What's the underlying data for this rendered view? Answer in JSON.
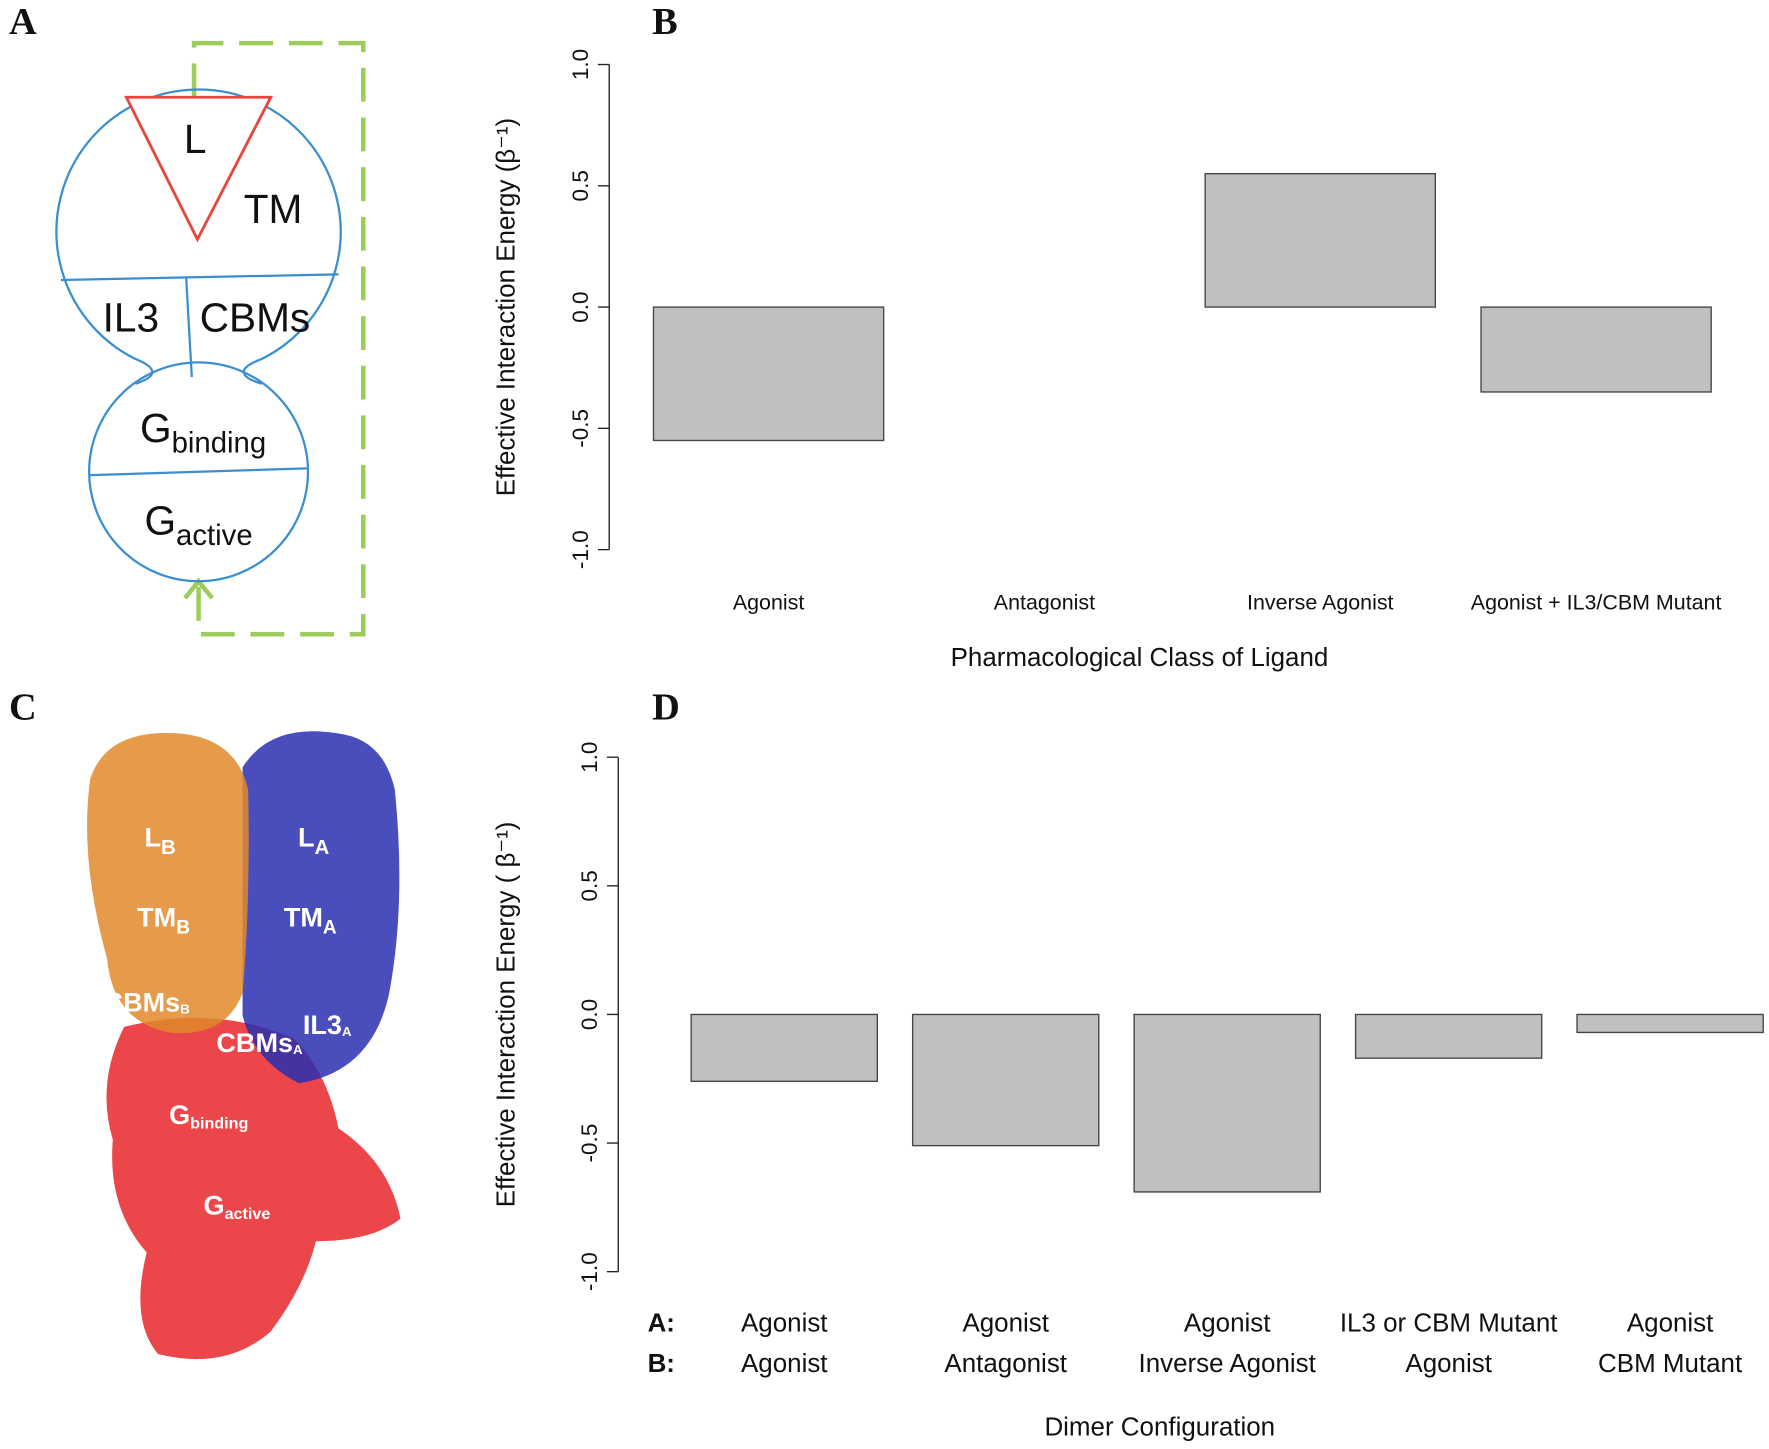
{
  "panels": [
    "A",
    "B",
    "C",
    "D"
  ],
  "diagram": {
    "ligand": "L",
    "tm": "TM",
    "il3": "IL3",
    "cbms": "CBMs",
    "g_binding": {
      "main": "G",
      "sub": "binding"
    },
    "g_active": {
      "main": "G",
      "sub": "active"
    }
  },
  "structure": {
    "labels": [
      {
        "main": "L",
        "sub": "B"
      },
      {
        "main": "L",
        "sub": "A"
      },
      {
        "main": "TM",
        "sub": "B"
      },
      {
        "main": "TM",
        "sub": "A"
      },
      {
        "main": "CBMs",
        "sub": "B"
      },
      {
        "main": "CBMs",
        "sub": "A"
      },
      {
        "main": "IL3",
        "sub": "A"
      },
      {
        "main": "G",
        "sub": "binding"
      },
      {
        "main": "G",
        "sub": "active"
      }
    ]
  },
  "chart_data": [
    {
      "type": "bar",
      "ylabel": "Effective Interaction Energy (β⁻¹)",
      "xlabel": "Pharmacological Class of Ligand",
      "categories": [
        "Agonist",
        "Antagonist",
        "Inverse Agonist",
        "Agonist + IL3/CBM Mutant"
      ],
      "values": [
        -0.55,
        0.0,
        0.55,
        -0.35
      ],
      "color": "#c0c0c0",
      "ylim": [
        -1,
        1
      ],
      "yticks": [
        {
          "value": -1,
          "label": "-1.0"
        },
        {
          "value": -0.5,
          "label": "-0.5"
        },
        {
          "value": 0,
          "label": "0.0"
        },
        {
          "value": 0.5,
          "label": "0.5"
        },
        {
          "value": 1,
          "label": "1.0"
        }
      ]
    },
    {
      "type": "bar",
      "ylabel": "Effective Interaction Energy ( β⁻¹)",
      "xlabel": "Dimer Configuration",
      "category_rows": [
        "A:",
        "B:"
      ],
      "categories": [
        [
          "Agonist",
          "Agonist"
        ],
        [
          "Agonist",
          "Antagonist"
        ],
        [
          "Agonist",
          "Inverse Agonist"
        ],
        [
          "IL3 or CBM Mutant",
          "Agonist"
        ],
        [
          "Agonist",
          "CBM Mutant"
        ]
      ],
      "values": [
        -0.26,
        -0.51,
        -0.69,
        -0.17,
        -0.07
      ],
      "color": "#c0c0c0",
      "ylim": [
        -1,
        1
      ],
      "yticks": [
        {
          "value": -1,
          "label": "-1.0"
        },
        {
          "value": -0.5,
          "label": "-0.5"
        },
        {
          "value": 0,
          "label": "0.0"
        },
        {
          "value": 0.5,
          "label": "0.5"
        },
        {
          "value": 1,
          "label": "1.0"
        }
      ]
    }
  ]
}
